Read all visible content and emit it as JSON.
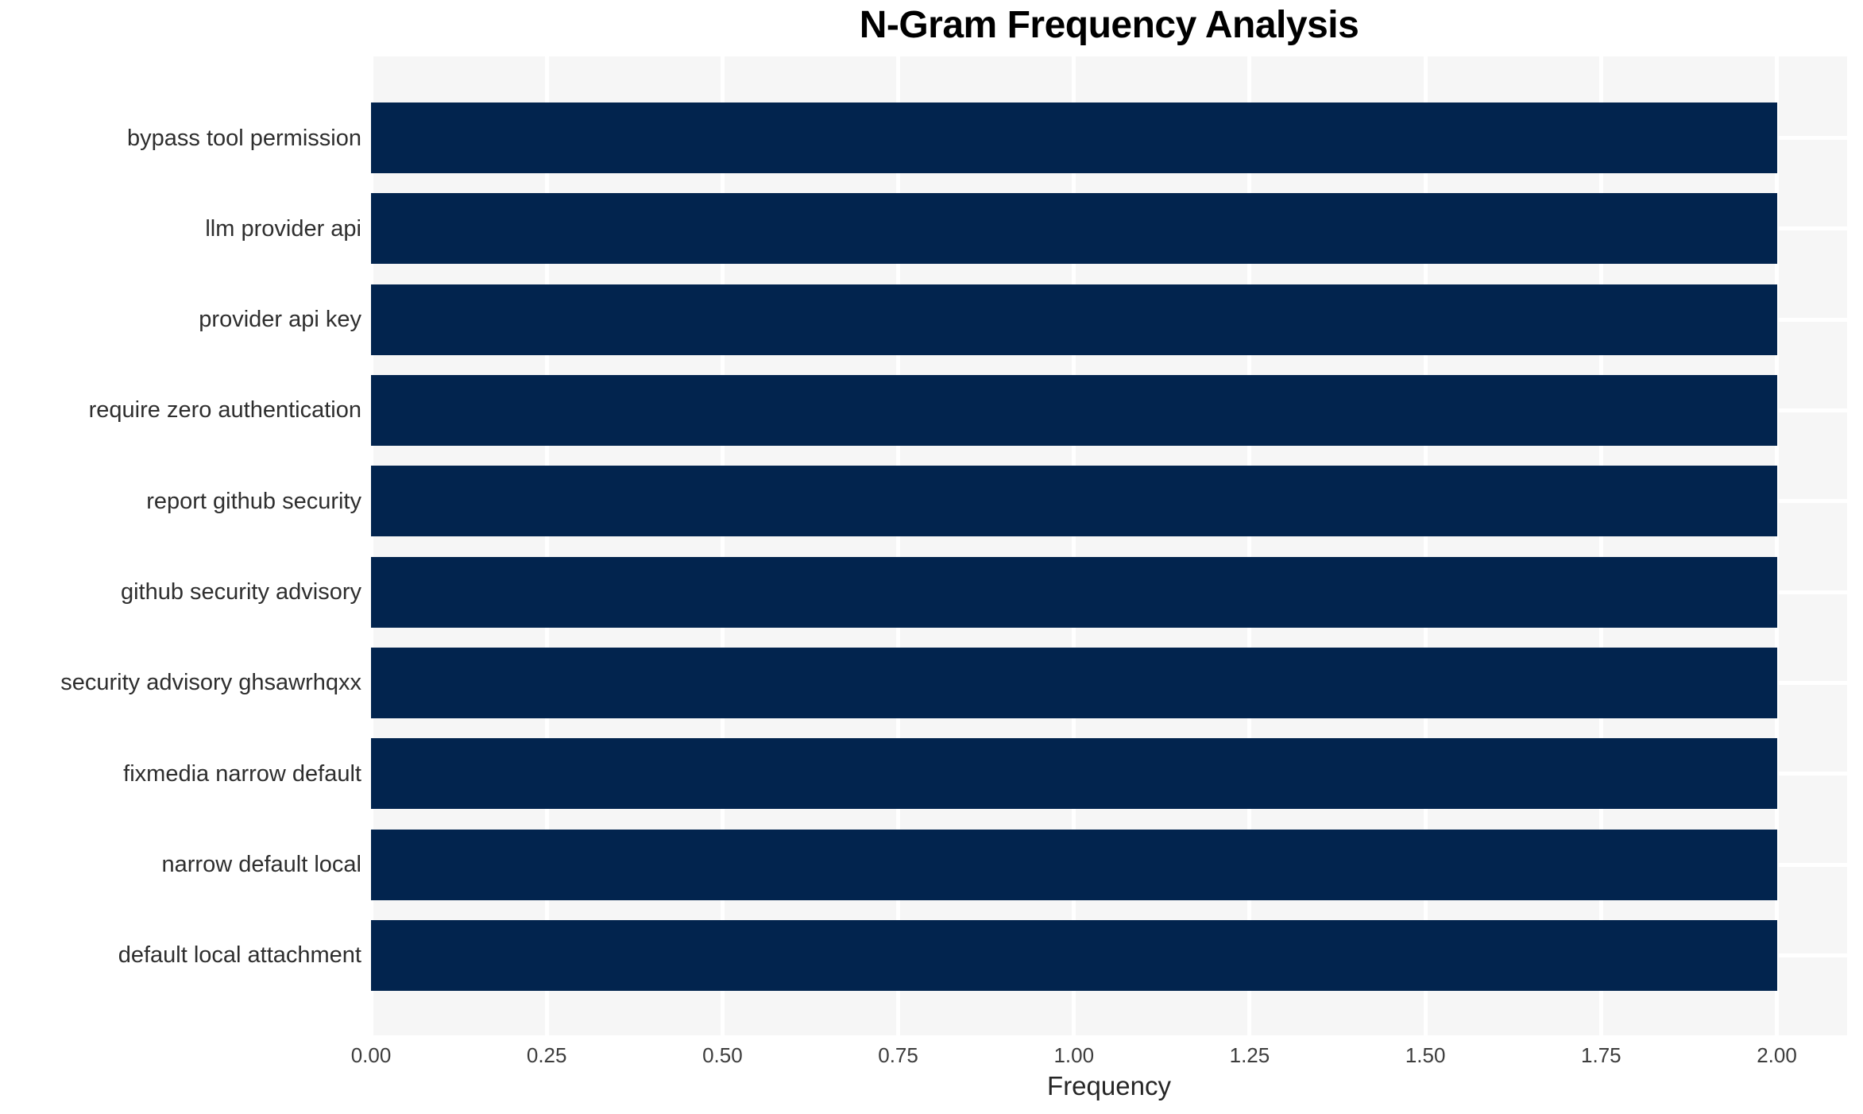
{
  "chart_data": {
    "type": "bar",
    "orientation": "horizontal",
    "title": "N-Gram Frequency Analysis",
    "xlabel": "Frequency",
    "ylabel": "",
    "categories": [
      "bypass tool permission",
      "llm provider api",
      "provider api key",
      "require zero authentication",
      "report github security",
      "github security advisory",
      "security advisory ghsawrhqxx",
      "fixmedia narrow default",
      "narrow default local",
      "default local attachment"
    ],
    "values": [
      2,
      2,
      2,
      2,
      2,
      2,
      2,
      2,
      2,
      2
    ],
    "xlim": [
      0,
      2.1
    ],
    "xticks": [
      0,
      0.25,
      0.5,
      0.75,
      1,
      1.25,
      1.5,
      1.75,
      2
    ],
    "xtick_labels": [
      "0.00",
      "0.25",
      "0.50",
      "0.75",
      "1.00",
      "1.25",
      "1.50",
      "1.75",
      "2.00"
    ],
    "grid": true,
    "legend": false,
    "colors": {
      "bar": "#02244e",
      "plot_background": "#f6f6f6",
      "gridline": "#ffffff",
      "figure_background": "#ffffff",
      "title_text": "#000000",
      "category_text": "#2e2e2e",
      "tick_text": "#3d3d3d",
      "axis_label_text": "#262626"
    }
  }
}
